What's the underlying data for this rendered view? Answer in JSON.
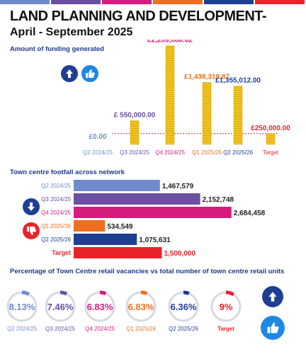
{
  "header": {
    "title": "LAND PLANNING AND DEVELOPMENT-",
    "subtitle": "April - September 2025",
    "strip_colors": [
      "#6e8ccb",
      "#6a4fa3",
      "#d81b7f",
      "#f06e1f",
      "#1f3f93",
      "#e8242a"
    ]
  },
  "funding": {
    "section_title": "Amount of funding generated",
    "icons": [
      "up-arrow-icon",
      "thumbs-up-icon"
    ]
  },
  "footfall": {
    "section_title": "Town centre footfall across network",
    "icons": [
      "down-arrow-icon",
      "thumbs-down-icon"
    ]
  },
  "vacancies": {
    "section_title": "Percentage of Town Centre retail vacancies vs total number of town centre retail units",
    "icons": [
      "up-arrow-icon",
      "thumbs-up-icon"
    ]
  },
  "chart_data": [
    {
      "type": "bar",
      "title": "Amount of funding generated",
      "categories": [
        "Q2 2024/25",
        "Q3 2024/25",
        "Q4 2024/25",
        "Q1 2025/26",
        "Q2 2025/26",
        "Target"
      ],
      "values": [
        0,
        550000,
        2289088.62,
        1438319.87,
        1355012,
        250000
      ],
      "value_labels": [
        "£0.00",
        "£ 550,000.00",
        "£2,289,088.62",
        "£1,438,319.87",
        "£1,355,012.00",
        "£250,000.00"
      ],
      "colors": [
        "#6e8ccb",
        "#6a4fa3",
        "#d81b7f",
        "#f06e1f",
        "#1f3f93",
        "#e8242a"
      ],
      "bar_style": "stacked gold coins",
      "target_line": 250000,
      "ylim": [
        0,
        2300000
      ]
    },
    {
      "type": "bar",
      "orientation": "horizontal",
      "title": "Town centre footfall across network",
      "categories": [
        "Q2 2024/25",
        "Q3 2024/25",
        "Q4 2024/25",
        "Q1 2025/26",
        "Q2 2025/26",
        "Target"
      ],
      "values": [
        1467579,
        2152748,
        2684458,
        534549,
        1075631,
        1500000
      ],
      "value_labels": [
        "1,467,579",
        "2,152,748",
        "2,684,458",
        "534,549",
        "1,075,631",
        "1,500,000"
      ],
      "colors": [
        "#6e8ccb",
        "#6a4fa3",
        "#d81b7f",
        "#f06e1f",
        "#1f3f93",
        "#e8242a"
      ],
      "xlim": [
        0,
        2700000
      ]
    },
    {
      "type": "pie",
      "title": "Percentage of Town Centre retail vacancies vs total number of town centre retail units",
      "categories": [
        "Q2 2024/25",
        "Q3 2024/25",
        "Q4 2024/25",
        "Q1 2025/26",
        "Q2 2025/26",
        "Target"
      ],
      "values": [
        8.13,
        7.46,
        6.83,
        6.83,
        6.36,
        9
      ],
      "value_labels": [
        "8.13%",
        "7.46%",
        "6.83%",
        "6.83%",
        "6.36%",
        "9%"
      ],
      "colors": [
        "#6e8ccb",
        "#6a4fa3",
        "#d81b7f",
        "#f06e1f",
        "#1f3f93",
        "#e8242a"
      ]
    }
  ]
}
